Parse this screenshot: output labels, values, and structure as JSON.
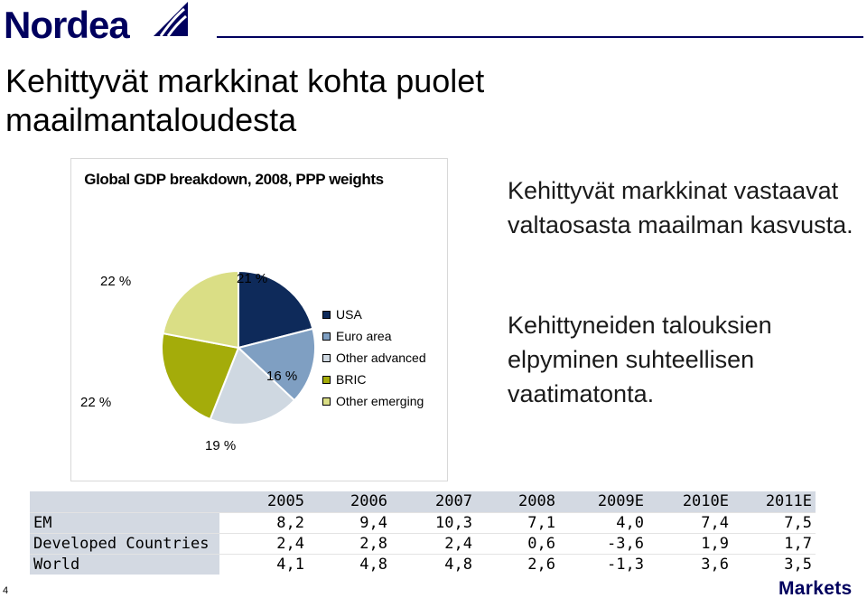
{
  "header": {
    "logo_text": "Nordea",
    "colors": {
      "brand": "#00005e"
    }
  },
  "title": "Kehittyvät markkinat kohta puolet maailmantaloudesta",
  "chart_data": {
    "type": "pie",
    "title": "Global GDP breakdown, 2008, PPP weights",
    "slices": [
      {
        "name": "USA",
        "value": 21,
        "label": "21 %",
        "color": "#0e2a5a"
      },
      {
        "name": "Euro area",
        "value": 16,
        "label": "16 %",
        "color": "#7f9fc2"
      },
      {
        "name": "Other advanced",
        "value": 19,
        "label": "19 %",
        "color": "#cfd8e1"
      },
      {
        "name": "BRIC",
        "value": 22,
        "label": "22 %",
        "color": "#a4ac0a"
      },
      {
        "name": "Other emerging",
        "value": 22,
        "label": "22 %",
        "color": "#dade85"
      }
    ],
    "legend_position": "right"
  },
  "side_text": {
    "p1": "Kehittyvät markkinat vastaavat valtaosasta maailman kasvusta.",
    "p2": "Kehittyneiden talouksien elpyminen suhteellisen vaatimatonta."
  },
  "table": {
    "headers": [
      "",
      "2005",
      "2006",
      "2007",
      "2008",
      "2009E",
      "2010E",
      "2011E"
    ],
    "rows": [
      {
        "label": "EM",
        "values": [
          "8,2",
          "9,4",
          "10,3",
          "7,1",
          "4,0",
          "7,4",
          "7,5"
        ]
      },
      {
        "label": "Developed Countries",
        "values": [
          "2,4",
          "2,8",
          "2,4",
          "0,6",
          "-3,6",
          "1,9",
          "1,7"
        ]
      },
      {
        "label": "World",
        "values": [
          "4,1",
          "4,8",
          "4,8",
          "2,6",
          "-1,3",
          "3,6",
          "3,5"
        ]
      }
    ]
  },
  "footer": {
    "page_number": "4",
    "brand": "Markets"
  }
}
